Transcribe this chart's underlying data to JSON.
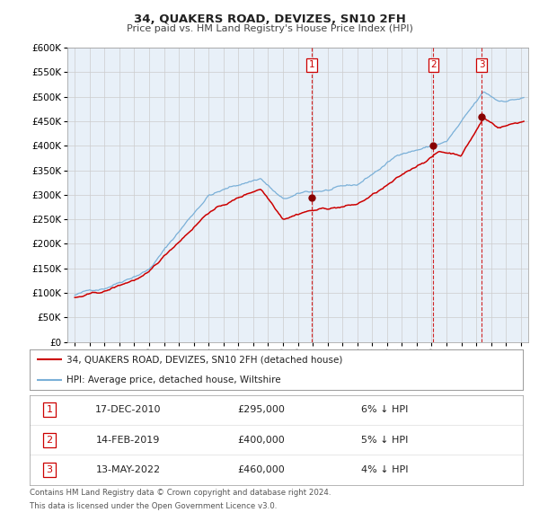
{
  "title": "34, QUAKERS ROAD, DEVIZES, SN10 2FH",
  "subtitle": "Price paid vs. HM Land Registry's House Price Index (HPI)",
  "legend_line1": "34, QUAKERS ROAD, DEVIZES, SN10 2FH (detached house)",
  "legend_line2": "HPI: Average price, detached house, Wiltshire",
  "footnote1": "Contains HM Land Registry data © Crown copyright and database right 2024.",
  "footnote2": "This data is licensed under the Open Government Licence v3.0.",
  "transactions": [
    {
      "num": 1,
      "date": "17-DEC-2010",
      "price": "£295,000",
      "pct": "6%",
      "dir": "↓",
      "year": 2010.96
    },
    {
      "num": 2,
      "date": "14-FEB-2019",
      "price": "£400,000",
      "pct": "5%",
      "dir": "↓",
      "year": 2019.12
    },
    {
      "num": 3,
      "date": "13-MAY-2022",
      "price": "£460,000",
      "pct": "4%",
      "dir": "↓",
      "year": 2022.37
    }
  ],
  "transaction_values": [
    295000,
    400000,
    460000
  ],
  "vline_years": [
    2010.96,
    2019.12,
    2022.37
  ],
  "bg_color": "#ffffff",
  "plot_bg": "#e8f0f8",
  "grid_color": "#cccccc",
  "hpi_color": "#7ab0d8",
  "price_color": "#cc0000",
  "marker_color": "#880000",
  "ylim": [
    0,
    600000
  ],
  "yticks": [
    0,
    50000,
    100000,
    150000,
    200000,
    250000,
    300000,
    350000,
    400000,
    450000,
    500000,
    550000,
    600000
  ],
  "xmin": 1994.5,
  "xmax": 2025.5
}
